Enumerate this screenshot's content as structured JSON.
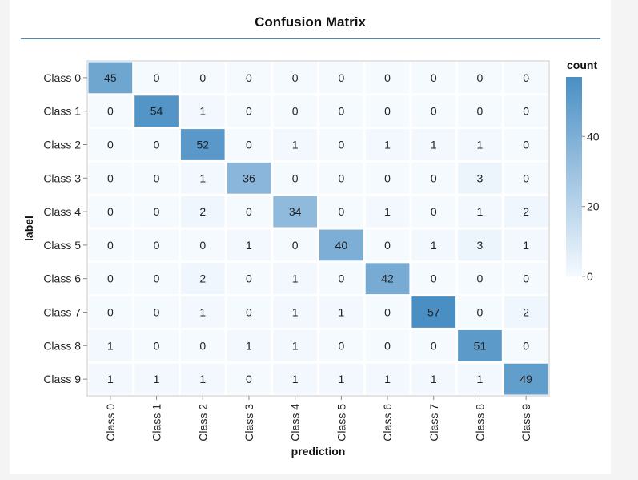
{
  "chart_data": {
    "type": "heatmap",
    "title": "Confusion Matrix",
    "xlabel": "prediction",
    "ylabel": "label",
    "x_categories": [
      "Class 0",
      "Class 1",
      "Class 2",
      "Class 3",
      "Class 4",
      "Class 5",
      "Class 6",
      "Class 7",
      "Class 8",
      "Class 9"
    ],
    "y_categories": [
      "Class 0",
      "Class 1",
      "Class 2",
      "Class 3",
      "Class 4",
      "Class 5",
      "Class 6",
      "Class 7",
      "Class 8",
      "Class 9"
    ],
    "values": [
      [
        45,
        0,
        0,
        0,
        0,
        0,
        0,
        0,
        0,
        0
      ],
      [
        0,
        54,
        1,
        0,
        0,
        0,
        0,
        0,
        0,
        0
      ],
      [
        0,
        0,
        52,
        0,
        1,
        0,
        1,
        1,
        1,
        0
      ],
      [
        0,
        0,
        1,
        36,
        0,
        0,
        0,
        0,
        3,
        0
      ],
      [
        0,
        0,
        2,
        0,
        34,
        0,
        1,
        0,
        1,
        2
      ],
      [
        0,
        0,
        0,
        1,
        0,
        40,
        0,
        1,
        3,
        1
      ],
      [
        0,
        0,
        2,
        0,
        1,
        0,
        42,
        0,
        0,
        0
      ],
      [
        0,
        0,
        1,
        0,
        1,
        1,
        0,
        57,
        0,
        2
      ],
      [
        1,
        0,
        0,
        1,
        1,
        0,
        0,
        0,
        51,
        0
      ],
      [
        1,
        1,
        1,
        0,
        1,
        1,
        1,
        1,
        1,
        49
      ]
    ],
    "legend": {
      "title": "count",
      "ticks": [
        0,
        20,
        40
      ],
      "range": [
        0,
        57
      ],
      "color_low": "#f5faff",
      "color_high": "#4a8fc4",
      "position": "right"
    }
  }
}
